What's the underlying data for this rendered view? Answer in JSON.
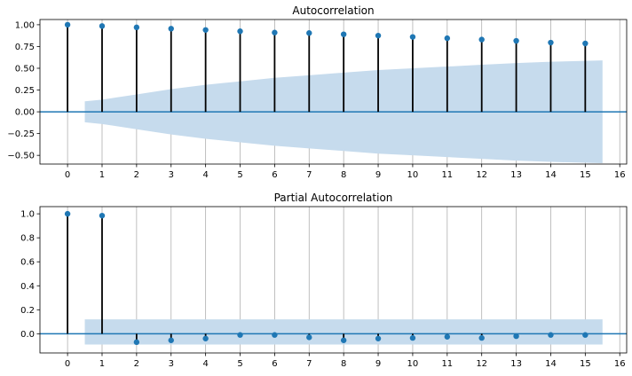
{
  "chart_data": [
    {
      "type": "stem",
      "title": "Autocorrelation",
      "x": [
        0,
        1,
        2,
        3,
        4,
        5,
        6,
        7,
        8,
        9,
        10,
        11,
        12,
        13,
        14,
        15
      ],
      "values": [
        1.0,
        0.985,
        0.97,
        0.955,
        0.94,
        0.925,
        0.91,
        0.905,
        0.89,
        0.875,
        0.86,
        0.845,
        0.83,
        0.815,
        0.795,
        0.785
      ],
      "confidence_band": {
        "x": [
          0.5,
          1,
          2,
          3,
          4,
          5,
          6,
          7,
          8,
          9,
          10,
          11,
          12,
          13,
          14,
          15,
          15.5
        ],
        "upper": [
          0.12,
          0.14,
          0.2,
          0.26,
          0.31,
          0.35,
          0.39,
          0.42,
          0.45,
          0.48,
          0.5,
          0.52,
          0.54,
          0.56,
          0.575,
          0.585,
          0.59
        ],
        "lower": [
          -0.12,
          -0.14,
          -0.2,
          -0.26,
          -0.31,
          -0.35,
          -0.39,
          -0.42,
          -0.45,
          -0.48,
          -0.5,
          -0.52,
          -0.54,
          -0.56,
          -0.575,
          -0.585,
          -0.59
        ]
      },
      "xlim": [
        -0.8,
        16.2
      ],
      "ylim": [
        -0.6,
        1.06
      ],
      "xticks": [
        0,
        1,
        2,
        3,
        4,
        5,
        6,
        7,
        8,
        9,
        10,
        11,
        12,
        13,
        14,
        15,
        16
      ],
      "yticks": [
        -0.5,
        -0.25,
        0.0,
        0.25,
        0.5,
        0.75,
        1.0
      ],
      "ytick_labels": [
        "−0.50",
        "−0.25",
        "0.00",
        "0.25",
        "0.50",
        "0.75",
        "1.00"
      ],
      "grid": "vertical",
      "colors": {
        "marker": "#1f77b4",
        "stem": "#000000",
        "band": "#c6dbed",
        "zero_line": "#1f77b4",
        "grid": "#b0b0b0"
      }
    },
    {
      "type": "stem",
      "title": "Partial Autocorrelation",
      "x": [
        0,
        1,
        2,
        3,
        4,
        5,
        6,
        7,
        8,
        9,
        10,
        11,
        12,
        13,
        14,
        15
      ],
      "values": [
        1.0,
        0.985,
        -0.07,
        -0.055,
        -0.04,
        -0.01,
        -0.01,
        -0.03,
        -0.055,
        -0.04,
        -0.035,
        -0.025,
        -0.035,
        -0.02,
        -0.01,
        -0.01
      ],
      "confidence_band": {
        "x": [
          0.5,
          15.5
        ],
        "upper": [
          0.12,
          0.12
        ],
        "lower": [
          -0.09,
          -0.09
        ]
      },
      "xlim": [
        -0.8,
        16.2
      ],
      "ylim": [
        -0.16,
        1.06
      ],
      "xticks": [
        0,
        1,
        2,
        3,
        4,
        5,
        6,
        7,
        8,
        9,
        10,
        11,
        12,
        13,
        14,
        15,
        16
      ],
      "yticks": [
        0.0,
        0.2,
        0.4,
        0.6,
        0.8,
        1.0
      ],
      "ytick_labels": [
        "0.0",
        "0.2",
        "0.4",
        "0.6",
        "0.8",
        "1.0"
      ],
      "grid": "vertical",
      "colors": {
        "marker": "#1f77b4",
        "stem": "#000000",
        "band": "#c6dbed",
        "zero_line": "#1f77b4",
        "grid": "#b0b0b0"
      }
    }
  ]
}
